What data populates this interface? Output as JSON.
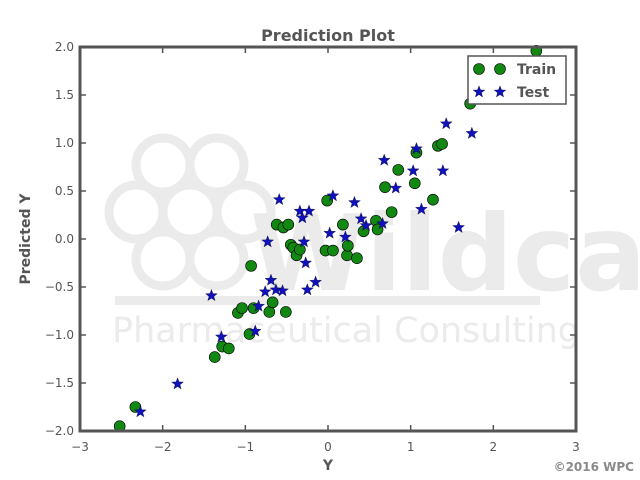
{
  "chart_data": {
    "type": "scatter",
    "title": "Prediction Plot",
    "xlabel": "Y",
    "ylabel": "Predicted Y",
    "xlim": [
      -3,
      3
    ],
    "ylim": [
      -2,
      2
    ],
    "xticks": [
      "−3",
      "−2",
      "−1",
      "0",
      "1",
      "2",
      "3"
    ],
    "yticks": [
      "−2.0",
      "−1.5",
      "−1.0",
      "−0.5",
      "0.0",
      "0.5",
      "1.0",
      "1.5",
      "2.0"
    ],
    "grid": false,
    "legend_position": "top-right",
    "series": [
      {
        "name": "Train",
        "marker": "circle",
        "color": "#118811",
        "points": [
          [
            -2.52,
            -1.95
          ],
          [
            -2.33,
            -1.75
          ],
          [
            -1.37,
            -1.23
          ],
          [
            -1.28,
            -1.12
          ],
          [
            -1.2,
            -1.14
          ],
          [
            -1.09,
            -0.77
          ],
          [
            -1.04,
            -0.72
          ],
          [
            -0.95,
            -0.99
          ],
          [
            -0.93,
            -0.28
          ],
          [
            -0.9,
            -0.72
          ],
          [
            -0.71,
            -0.76
          ],
          [
            -0.67,
            -0.66
          ],
          [
            -0.62,
            0.15
          ],
          [
            -0.54,
            0.12
          ],
          [
            -0.51,
            -0.76
          ],
          [
            -0.48,
            0.15
          ],
          [
            -0.45,
            -0.06
          ],
          [
            -0.42,
            -0.09
          ],
          [
            -0.38,
            -0.17
          ],
          [
            -0.34,
            -0.11
          ],
          [
            -0.03,
            -0.12
          ],
          [
            -0.01,
            0.4
          ],
          [
            0.06,
            -0.12
          ],
          [
            0.18,
            0.15
          ],
          [
            0.23,
            -0.17
          ],
          [
            0.24,
            -0.07
          ],
          [
            0.35,
            -0.2
          ],
          [
            0.43,
            0.08
          ],
          [
            0.58,
            0.19
          ],
          [
            0.6,
            0.1
          ],
          [
            0.69,
            0.54
          ],
          [
            0.77,
            0.28
          ],
          [
            0.85,
            0.72
          ],
          [
            1.05,
            0.58
          ],
          [
            1.07,
            0.9
          ],
          [
            1.27,
            0.41
          ],
          [
            1.33,
            0.97
          ],
          [
            1.38,
            0.99
          ],
          [
            1.72,
            1.41
          ],
          [
            2.52,
            1.96
          ]
        ]
      },
      {
        "name": "Test",
        "marker": "star",
        "color": "#1111bb",
        "points": [
          [
            -2.27,
            -1.8
          ],
          [
            -1.82,
            -1.51
          ],
          [
            -1.41,
            -0.59
          ],
          [
            -1.29,
            -1.02
          ],
          [
            -0.88,
            -0.96
          ],
          [
            -0.84,
            -0.7
          ],
          [
            -0.76,
            -0.55
          ],
          [
            -0.73,
            -0.03
          ],
          [
            -0.69,
            -0.43
          ],
          [
            -0.63,
            -0.53
          ],
          [
            -0.59,
            0.41
          ],
          [
            -0.55,
            -0.54
          ],
          [
            -0.34,
            0.29
          ],
          [
            -0.31,
            0.22
          ],
          [
            -0.29,
            -0.03
          ],
          [
            -0.27,
            -0.25
          ],
          [
            -0.25,
            -0.53
          ],
          [
            -0.23,
            0.29
          ],
          [
            -0.15,
            -0.45
          ],
          [
            0.02,
            0.06
          ],
          [
            0.06,
            0.45
          ],
          [
            0.21,
            0.02
          ],
          [
            0.32,
            0.38
          ],
          [
            0.4,
            0.21
          ],
          [
            0.46,
            0.14
          ],
          [
            0.66,
            0.16
          ],
          [
            0.68,
            0.82
          ],
          [
            0.82,
            0.53
          ],
          [
            1.03,
            0.71
          ],
          [
            1.07,
            0.94
          ],
          [
            1.13,
            0.31
          ],
          [
            1.39,
            0.71
          ],
          [
            1.43,
            1.2
          ],
          [
            1.58,
            0.12
          ],
          [
            1.74,
            1.1
          ]
        ]
      }
    ]
  },
  "watermark": {
    "line1": "Wildcard",
    "line2": "Pharmaceutical Consulting"
  },
  "copyright": "©2016 WPC",
  "colors": {
    "axes": "#555555",
    "train": "#118811",
    "test": "#1111bb",
    "watermark": "#ebebeb"
  }
}
